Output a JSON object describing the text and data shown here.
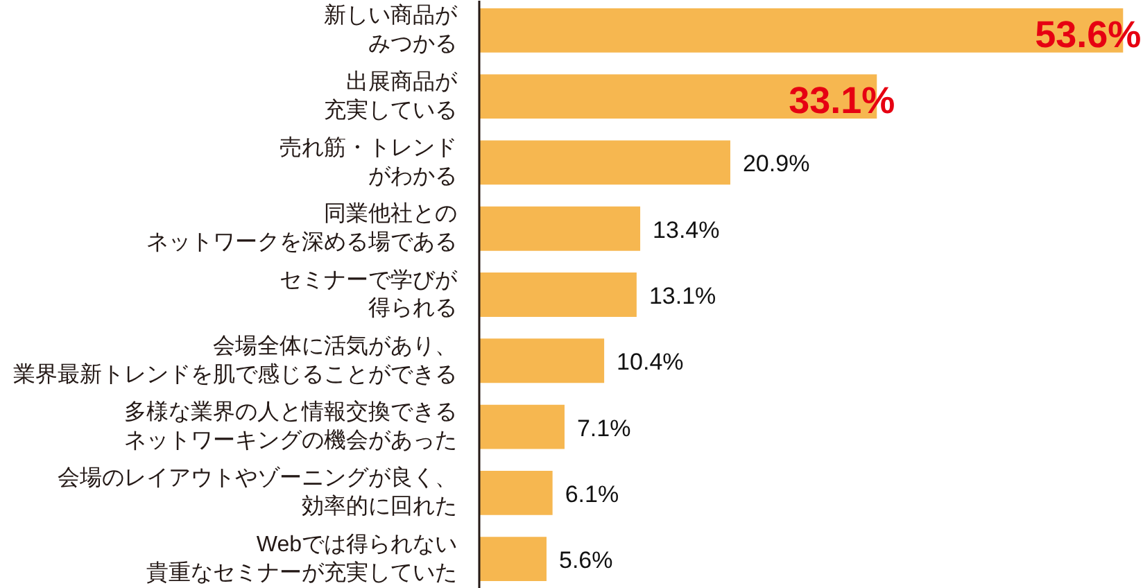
{
  "chart_data": {
    "type": "bar",
    "orientation": "horizontal",
    "categories": [
      "新しい商品がみつかる",
      "出展商品が充実している",
      "売れ筋・トレンドがわかる",
      "同業他社とのネットワークを深める場である",
      "セミナーで学びが得られる",
      "会場全体に活気があり、業界最新トレンドを肌で感じることができる",
      "多様な業界の人と情報交換できるネットワーキングの機会があった",
      "会場のレイアウトやゾーニングが良く、効率的に回れた",
      "Webでは得られない貴重なセミナーが充実していた"
    ],
    "values": [
      53.6,
      33.1,
      20.9,
      13.4,
      13.1,
      10.4,
      7.1,
      6.1,
      5.6
    ],
    "color": "#f6b750",
    "value_labels": [
      "53.6%",
      "33.1%",
      "20.9%",
      "13.4%",
      "13.1%",
      "10.4%",
      "7.1%",
      "6.1%",
      "5.6%"
    ]
  }
}
